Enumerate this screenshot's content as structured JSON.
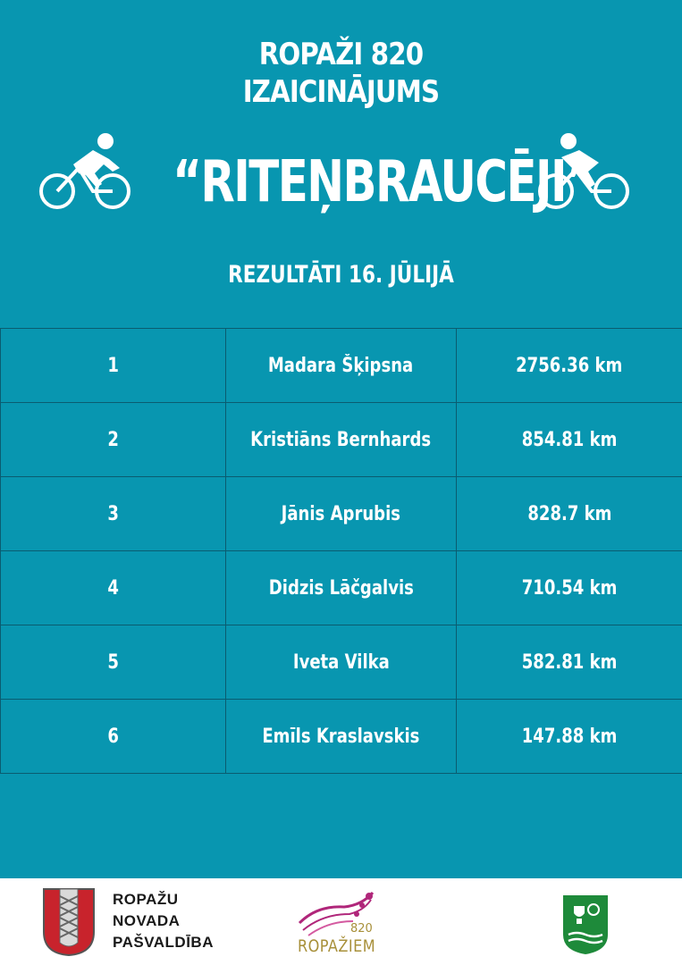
{
  "header": {
    "line1": "ROPAŽI 820",
    "line2": "IZAICINĀJUMS",
    "main_title": "“RITEŅBRAUCĒJI”",
    "icon_left": "cyclist-icon",
    "icon_right": "cyclist-icon",
    "subtitle": "REZULTĀTI 16. JŪLIJĀ"
  },
  "results": [
    {
      "rank": "1",
      "name": "Madara Šķipsna",
      "distance": "2756.36 km"
    },
    {
      "rank": "2",
      "name": "Kristiāns Bernhards",
      "distance": "854.81 km"
    },
    {
      "rank": "3",
      "name": "Jānis Aprubis",
      "distance": "828.7 km"
    },
    {
      "rank": "4",
      "name": "Didzis Lāčgalvis",
      "distance": "710.54 km"
    },
    {
      "rank": "5",
      "name": "Iveta Vilka",
      "distance": "582.81 km"
    },
    {
      "rank": "6",
      "name": "Emīls Kraslavskis",
      "distance": "147.88 km"
    }
  ],
  "footer": {
    "municipality": [
      "ROPAŽU",
      "NOVADA",
      "PAŠVALDĪBA"
    ],
    "anniversary_number": "820",
    "anniversary_word": "ROPAŽIEM",
    "crest_icon": "coat-of-arms-icon",
    "shield_icon": "sports-shield-icon"
  },
  "colors": {
    "background": "#0896b0",
    "grid": "#0a5c70",
    "text": "#ffffff",
    "crest_red": "#c8232c",
    "shield_green": "#1e8a3a",
    "logo_magenta": "#b0267a",
    "logo_gold": "#a8903a"
  }
}
